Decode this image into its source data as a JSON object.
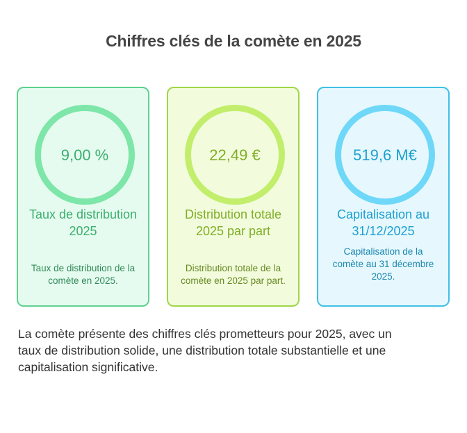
{
  "title": "Chiffres clés de la comète en 2025",
  "cards": [
    {
      "value": "9,00 %",
      "heading": "Taux de distribution 2025",
      "description": "Taux de distribution de la comète en 2025."
    },
    {
      "value": "22,49 €",
      "heading": "Distribution totale 2025 par part",
      "description": "Distribution totale de la comète en 2025 par part."
    },
    {
      "value": "519,6 M€",
      "heading": "Capitalisation au 31/12/2025",
      "description": "Capitalisation de la comète au 31 décembre 2025."
    }
  ],
  "summary": "La comète présente des chiffres clés prometteurs pour 2025, avec un taux de distribution solide, une distribution totale substantielle et une capitalisation significative.",
  "colors": {
    "green_accent": "#3aaf6f",
    "lime_accent": "#7fae25",
    "blue_accent": "#1ca0d2"
  }
}
